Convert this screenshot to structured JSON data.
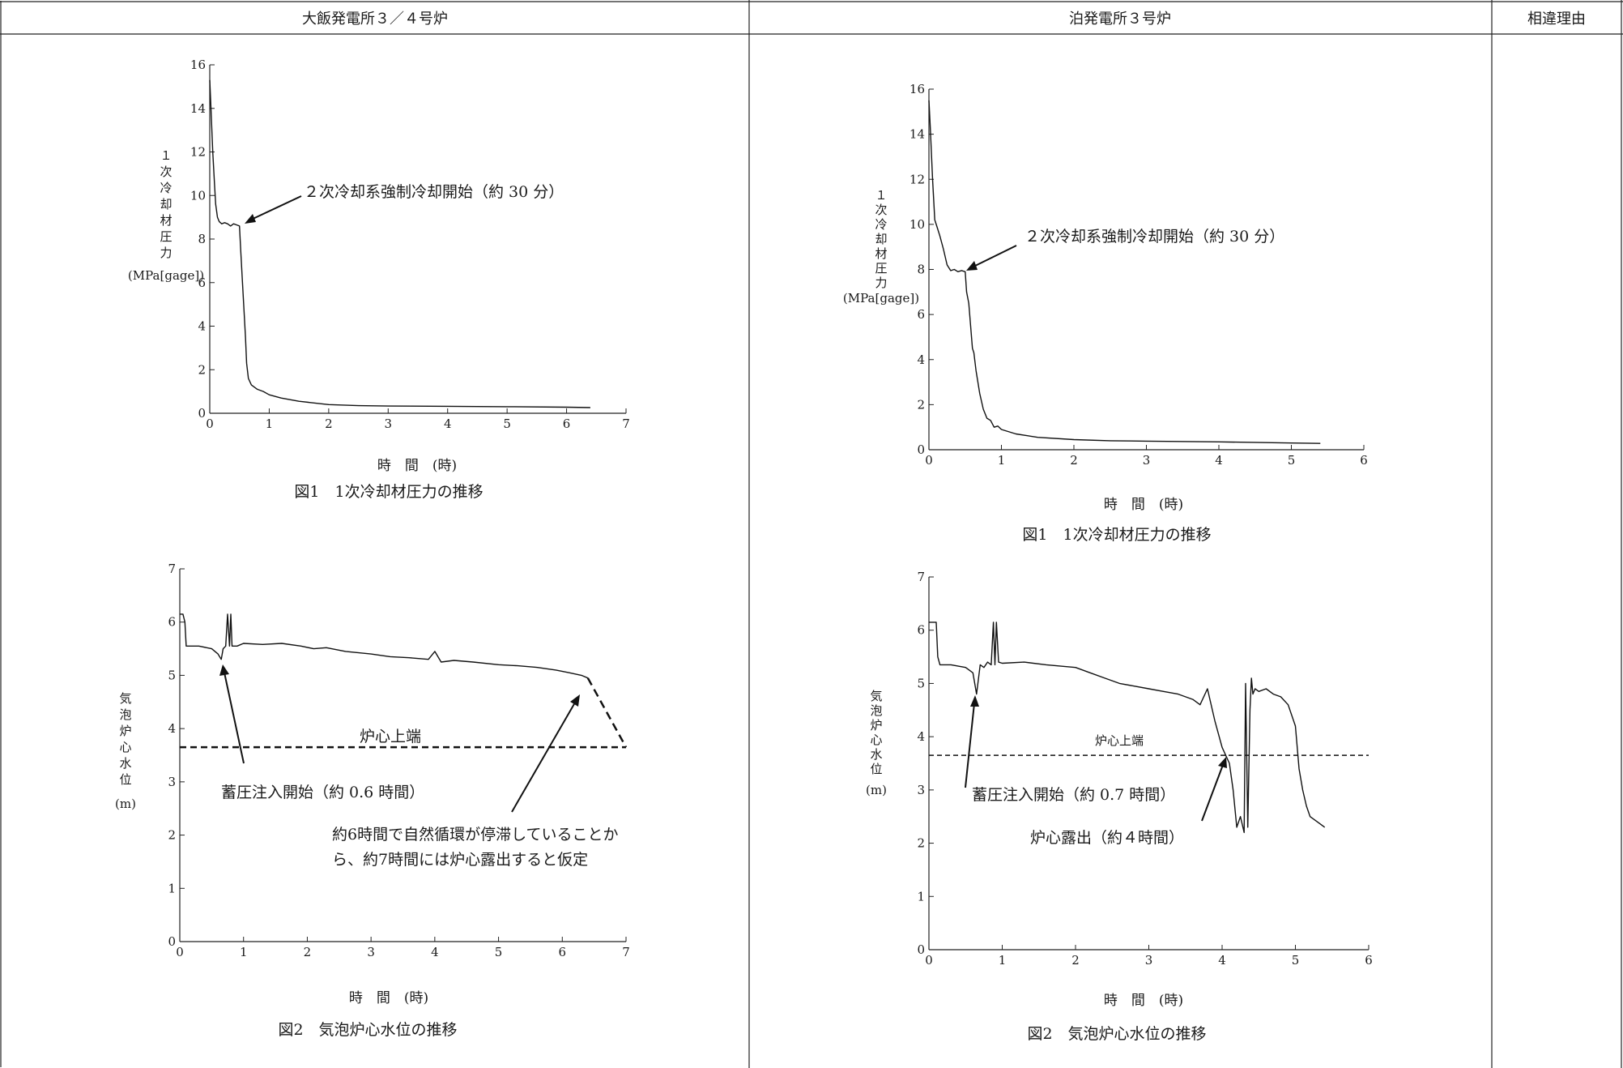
{
  "table": {
    "headers": [
      "大飯発電所３／４号炉",
      "泊発電所３号炉",
      "相違理由"
    ]
  },
  "panels": {
    "ohi_fig1": {
      "ylabel_chars": [
        "１",
        "次",
        "冷",
        "却",
        "材",
        "圧",
        "力"
      ],
      "yunit": "(MPa[gage])",
      "xlabel": "時　間　(時)",
      "caption": "図1　1次冷却材圧力の推移",
      "annotation": "２次冷却系強制冷却開始（約 30 分）"
    },
    "ohi_fig2": {
      "ylabel_chars": [
        "気",
        "泡",
        "炉",
        "心",
        "水",
        "位"
      ],
      "yunit": "(m)",
      "xlabel": "時　間　(時)",
      "caption": "図2　気泡炉心水位の推移",
      "ref_label": "炉心上端",
      "annotation1": "蓄圧注入開始（約 0.6 時間）",
      "annotation2_line1": "約6時間で自然循環が停滞していることか",
      "annotation2_line2": "ら、約7時間には炉心露出すると仮定"
    },
    "tomari_fig1": {
      "ylabel_chars": [
        "１",
        "次",
        "冷",
        "却",
        "材",
        "圧",
        "力"
      ],
      "yunit": "(MPa[gage])",
      "xlabel": "時　間　(時)",
      "caption": "図1　1次冷却材圧力の推移",
      "annotation": "２次冷却系強制冷却開始（約 30 分）"
    },
    "tomari_fig2": {
      "ylabel_chars": [
        "気",
        "泡",
        "炉",
        "心",
        "水",
        "位"
      ],
      "yunit": "(m)",
      "xlabel": "時　間　(時)",
      "caption": "図2　気泡炉心水位の推移",
      "ref_label": "炉心上端",
      "annotation1": "蓄圧注入開始（約 0.7 時間）",
      "annotation2": "炉心露出（約４時間）"
    }
  },
  "chart_data": [
    {
      "id": "ohi_fig1",
      "type": "line",
      "xlim": [
        0,
        7
      ],
      "ylim": [
        0,
        16
      ],
      "xticks": [
        0,
        1,
        2,
        3,
        4,
        5,
        6,
        7
      ],
      "yticks": [
        0,
        2,
        4,
        6,
        8,
        10,
        12,
        14,
        16
      ],
      "series": [
        {
          "x": [
            0,
            0.02,
            0.05,
            0.08,
            0.1,
            0.13,
            0.16,
            0.2,
            0.25,
            0.3,
            0.35,
            0.4,
            0.45,
            0.5,
            0.52,
            0.55,
            0.6,
            0.62,
            0.65,
            0.7,
            0.8,
            0.9,
            1.0,
            1.2,
            1.5,
            2.0,
            2.5,
            3.0,
            4.0,
            5.0,
            6.0,
            6.4
          ],
          "y": [
            15.3,
            14.0,
            12.0,
            10.5,
            9.6,
            9.0,
            8.8,
            8.7,
            8.75,
            8.7,
            8.6,
            8.7,
            8.65,
            8.6,
            7.5,
            6.0,
            3.5,
            2.3,
            1.6,
            1.3,
            1.1,
            1.0,
            0.85,
            0.7,
            0.55,
            0.4,
            0.35,
            0.33,
            0.32,
            0.3,
            0.28,
            0.26
          ]
        }
      ]
    },
    {
      "id": "ohi_fig2",
      "type": "line",
      "xlim": [
        0,
        7
      ],
      "ylim": [
        0,
        7
      ],
      "xticks": [
        0,
        1,
        2,
        3,
        4,
        5,
        6,
        7
      ],
      "yticks": [
        0,
        1,
        2,
        3,
        4,
        5,
        6,
        7
      ],
      "reference_line": 3.65,
      "series": [
        {
          "x": [
            0,
            0.05,
            0.08,
            0.1,
            0.3,
            0.5,
            0.6,
            0.65,
            0.68,
            0.72,
            0.75,
            0.78,
            0.8,
            0.82,
            0.85,
            0.9,
            1.0,
            1.3,
            1.6,
            1.9,
            2.1,
            2.3,
            2.6,
            3.0,
            3.3,
            3.6,
            3.9,
            4.0,
            4.1,
            4.3,
            4.6,
            5.0,
            5.3,
            5.6,
            5.9,
            6.1,
            6.3,
            6.4
          ],
          "y": [
            6.15,
            6.15,
            6.0,
            5.55,
            5.55,
            5.5,
            5.4,
            5.3,
            5.5,
            5.55,
            6.15,
            5.55,
            6.15,
            5.55,
            5.55,
            5.55,
            5.6,
            5.58,
            5.6,
            5.55,
            5.5,
            5.52,
            5.45,
            5.4,
            5.35,
            5.33,
            5.3,
            5.45,
            5.25,
            5.28,
            5.25,
            5.2,
            5.18,
            5.15,
            5.1,
            5.05,
            5.0,
            4.95
          ]
        },
        {
          "name": "assumed",
          "style": "dashed",
          "x": [
            6.4,
            7.0
          ],
          "y": [
            4.95,
            3.65
          ]
        }
      ]
    },
    {
      "id": "tomari_fig1",
      "type": "line",
      "xlim": [
        0,
        6
      ],
      "ylim": [
        0,
        16
      ],
      "xticks": [
        0,
        1,
        2,
        3,
        4,
        5,
        6
      ],
      "yticks": [
        0,
        2,
        4,
        6,
        8,
        10,
        12,
        14,
        16
      ],
      "series": [
        {
          "x": [
            0,
            0.02,
            0.05,
            0.08,
            0.1,
            0.15,
            0.2,
            0.25,
            0.3,
            0.35,
            0.4,
            0.45,
            0.5,
            0.52,
            0.55,
            0.6,
            0.62,
            0.65,
            0.7,
            0.75,
            0.8,
            0.85,
            0.9,
            0.95,
            1.0,
            1.2,
            1.5,
            2.0,
            2.5,
            3.0,
            4.0,
            5.0,
            5.4
          ],
          "y": [
            15.5,
            14.2,
            12.0,
            10.2,
            10.0,
            9.5,
            8.9,
            8.2,
            7.95,
            8.0,
            7.9,
            7.95,
            7.9,
            7.0,
            6.5,
            4.5,
            4.3,
            3.5,
            2.5,
            1.8,
            1.4,
            1.3,
            1.0,
            1.05,
            0.9,
            0.7,
            0.55,
            0.45,
            0.4,
            0.38,
            0.35,
            0.3,
            0.28
          ]
        }
      ]
    },
    {
      "id": "tomari_fig2",
      "type": "line",
      "xlim": [
        0,
        6
      ],
      "ylim": [
        0,
        7
      ],
      "xticks": [
        0,
        1,
        2,
        3,
        4,
        5,
        6
      ],
      "yticks": [
        0,
        1,
        2,
        3,
        4,
        5,
        6,
        7
      ],
      "reference_line": 3.65,
      "series": [
        {
          "x": [
            0,
            0.05,
            0.1,
            0.12,
            0.15,
            0.3,
            0.5,
            0.6,
            0.65,
            0.7,
            0.75,
            0.8,
            0.85,
            0.88,
            0.9,
            0.92,
            0.95,
            1.0,
            1.3,
            1.6,
            2.0,
            2.2,
            2.4,
            2.6,
            2.8,
            3.0,
            3.2,
            3.4,
            3.6,
            3.7,
            3.8,
            3.9,
            4.0,
            4.1,
            4.15,
            4.2,
            4.25,
            4.3,
            4.32,
            4.35,
            4.38,
            4.4,
            4.42,
            4.45,
            4.5,
            4.6,
            4.7,
            4.8,
            4.9,
            5.0,
            5.05,
            5.1,
            5.15,
            5.2,
            5.3,
            5.4
          ],
          "y": [
            6.15,
            6.15,
            6.15,
            5.5,
            5.35,
            5.35,
            5.3,
            5.2,
            4.8,
            5.35,
            5.3,
            5.4,
            5.35,
            6.15,
            5.35,
            6.15,
            5.4,
            5.38,
            5.4,
            5.35,
            5.3,
            5.2,
            5.1,
            5.0,
            4.95,
            4.9,
            4.85,
            4.8,
            4.7,
            4.6,
            4.9,
            4.3,
            3.8,
            3.5,
            3.0,
            2.3,
            2.5,
            2.2,
            5.0,
            2.3,
            4.5,
            5.1,
            4.8,
            4.9,
            4.85,
            4.9,
            4.8,
            4.75,
            4.6,
            4.2,
            3.4,
            3.0,
            2.7,
            2.5,
            2.4,
            2.3
          ]
        }
      ]
    }
  ]
}
